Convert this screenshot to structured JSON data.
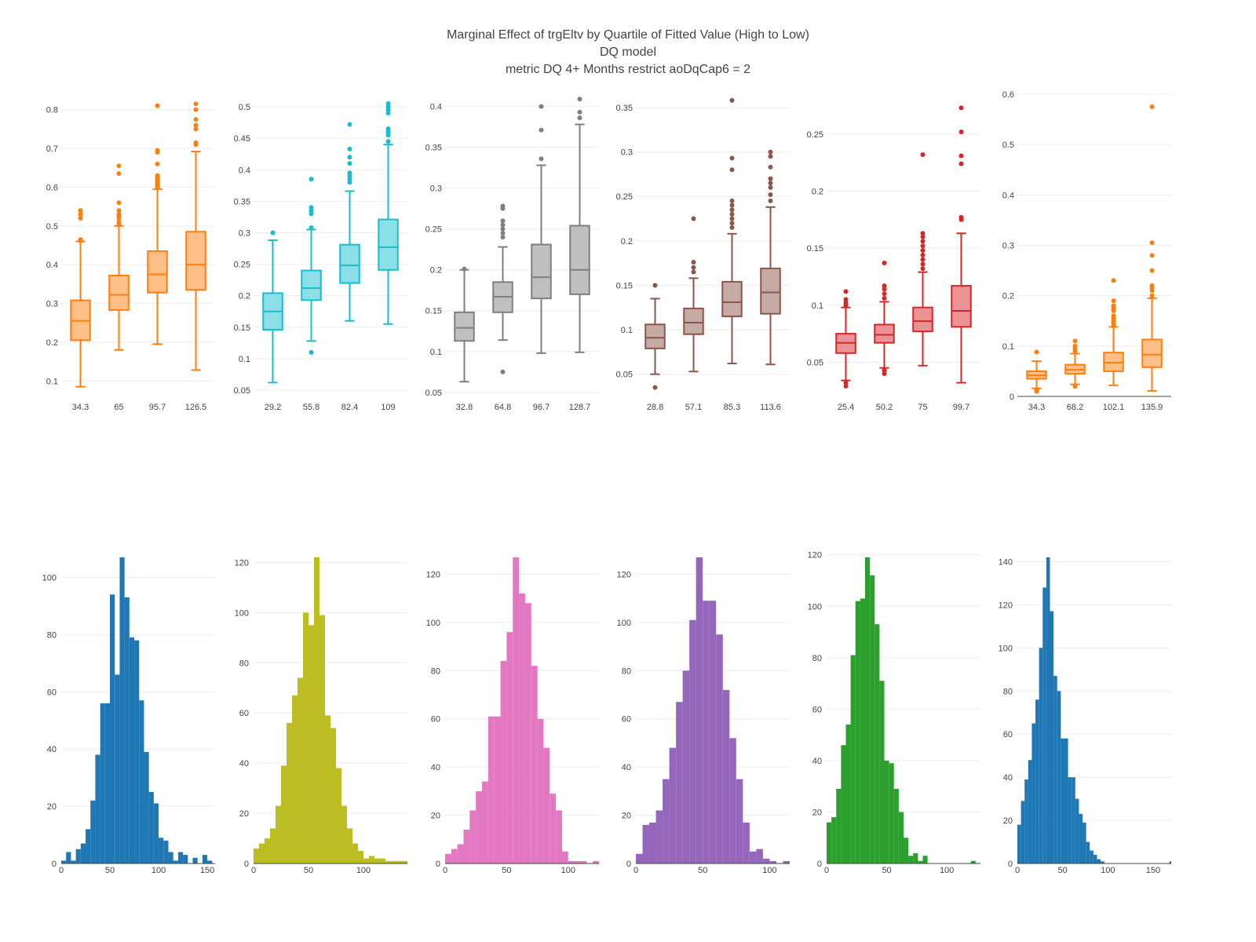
{
  "title": {
    "line1": "Marginal Effect of trgEltv by Quartile of Fitted Value (High to Low)",
    "line2": "DQ model",
    "line3": "metric DQ 4+ Months restrict aoDqCap6 = 2"
  },
  "chart_data": [
    {
      "type": "box",
      "color": "#ff7f0e",
      "categories": [
        "34.3",
        "65",
        "95.7",
        "126.5"
      ],
      "yticks": [
        "0.1",
        "0.2",
        "0.3",
        "0.4",
        "0.5",
        "0.6",
        "0.7",
        "0.8"
      ],
      "ylim": [
        0.06,
        0.84
      ],
      "boxes": [
        {
          "min": 0.085,
          "q1": 0.205,
          "median": 0.255,
          "q3": 0.308,
          "max": 0.46,
          "outliers": [
            0.462,
            0.465,
            0.52,
            0.53,
            0.54
          ]
        },
        {
          "min": 0.18,
          "q1": 0.283,
          "median": 0.322,
          "q3": 0.372,
          "max": 0.5,
          "outliers": [
            0.505,
            0.51,
            0.52,
            0.525,
            0.53,
            0.54,
            0.56,
            0.635,
            0.655
          ]
        },
        {
          "min": 0.195,
          "q1": 0.328,
          "median": 0.375,
          "q3": 0.435,
          "max": 0.595,
          "outliers": [
            0.6,
            0.605,
            0.61,
            0.615,
            0.62,
            0.625,
            0.63,
            0.66,
            0.69,
            0.695,
            0.81
          ]
        },
        {
          "min": 0.128,
          "q1": 0.335,
          "median": 0.4,
          "q3": 0.485,
          "max": 0.692,
          "outliers": [
            0.71,
            0.715,
            0.75,
            0.76,
            0.775,
            0.8,
            0.815
          ]
        }
      ]
    },
    {
      "type": "box",
      "color": "#17becf",
      "categories": [
        "29.2",
        "55.8",
        "82.4",
        "109"
      ],
      "yticks": [
        "0.05",
        "0.1",
        "0.15",
        "0.2",
        "0.25",
        "0.3",
        "0.35",
        "0.4",
        "0.45",
        "0.5"
      ],
      "ylim": [
        0.04,
        0.52
      ],
      "boxes": [
        {
          "min": 0.062,
          "q1": 0.146,
          "median": 0.175,
          "q3": 0.204,
          "max": 0.288,
          "outliers": [
            0.3
          ]
        },
        {
          "min": 0.128,
          "q1": 0.193,
          "median": 0.212,
          "q3": 0.24,
          "max": 0.305,
          "outliers": [
            0.11,
            0.308,
            0.33,
            0.335,
            0.34,
            0.385
          ]
        },
        {
          "min": 0.16,
          "q1": 0.22,
          "median": 0.248,
          "q3": 0.281,
          "max": 0.366,
          "outliers": [
            0.38,
            0.385,
            0.39,
            0.395,
            0.41,
            0.42,
            0.433,
            0.472
          ]
        },
        {
          "min": 0.155,
          "q1": 0.241,
          "median": 0.277,
          "q3": 0.321,
          "max": 0.44,
          "outliers": [
            0.445,
            0.455,
            0.46,
            0.465,
            0.49,
            0.495,
            0.5,
            0.505
          ]
        }
      ]
    },
    {
      "type": "box",
      "color": "#7f7f7f",
      "categories": [
        "32.8",
        "64.8",
        "96.7",
        "128.7"
      ],
      "yticks": [
        "0.05",
        "0.1",
        "0.15",
        "0.2",
        "0.25",
        "0.3",
        "0.35",
        "0.4"
      ],
      "ylim": [
        0.045,
        0.415
      ],
      "boxes": [
        {
          "min": 0.063,
          "q1": 0.113,
          "median": 0.129,
          "q3": 0.148,
          "max": 0.2,
          "outliers": [
            0.201
          ]
        },
        {
          "min": 0.114,
          "q1": 0.148,
          "median": 0.167,
          "q3": 0.185,
          "max": 0.228,
          "outliers": [
            0.075,
            0.24,
            0.245,
            0.25,
            0.255,
            0.26,
            0.275,
            0.278
          ]
        },
        {
          "min": 0.098,
          "q1": 0.165,
          "median": 0.191,
          "q3": 0.231,
          "max": 0.328,
          "outliers": [
            0.336,
            0.371,
            0.4
          ]
        },
        {
          "min": 0.099,
          "q1": 0.17,
          "median": 0.2,
          "q3": 0.254,
          "max": 0.378,
          "outliers": [
            0.386,
            0.393,
            0.409
          ]
        }
      ]
    },
    {
      "type": "box",
      "color": "#8c564b",
      "categories": [
        "28.8",
        "57.1",
        "85.3",
        "113.6"
      ],
      "yticks": [
        "0.05",
        "0.1",
        "0.15",
        "0.2",
        "0.25",
        "0.3",
        "0.35"
      ],
      "ylim": [
        0.025,
        0.365
      ],
      "boxes": [
        {
          "min": 0.05,
          "q1": 0.079,
          "median": 0.091,
          "q3": 0.106,
          "max": 0.135,
          "outliers": [
            0.035,
            0.15
          ]
        },
        {
          "min": 0.053,
          "q1": 0.095,
          "median": 0.108,
          "q3": 0.124,
          "max": 0.158,
          "outliers": [
            0.165,
            0.17,
            0.176,
            0.225
          ]
        },
        {
          "min": 0.062,
          "q1": 0.115,
          "median": 0.131,
          "q3": 0.154,
          "max": 0.208,
          "outliers": [
            0.215,
            0.22,
            0.225,
            0.23,
            0.235,
            0.24,
            0.245,
            0.28,
            0.293,
            0.358
          ]
        },
        {
          "min": 0.061,
          "q1": 0.118,
          "median": 0.142,
          "q3": 0.169,
          "max": 0.238,
          "outliers": [
            0.245,
            0.252,
            0.26,
            0.265,
            0.27,
            0.283,
            0.295,
            0.3
          ]
        }
      ]
    },
    {
      "type": "box",
      "color": "#d62728",
      "categories": [
        "25.4",
        "50.2",
        "75",
        "99.7"
      ],
      "yticks": [
        "0.05",
        "0.1",
        "0.15",
        "0.2",
        "0.25"
      ],
      "ylim": [
        0.02,
        0.285
      ],
      "boxes": [
        {
          "min": 0.034,
          "q1": 0.058,
          "median": 0.067,
          "q3": 0.075,
          "max": 0.098,
          "outliers": [
            0.029,
            0.032,
            0.1,
            0.102,
            0.105,
            0.112
          ]
        },
        {
          "min": 0.045,
          "q1": 0.067,
          "median": 0.074,
          "q3": 0.083,
          "max": 0.103,
          "outliers": [
            0.04,
            0.043,
            0.106,
            0.11,
            0.114,
            0.117,
            0.137
          ]
        },
        {
          "min": 0.047,
          "q1": 0.077,
          "median": 0.086,
          "q3": 0.098,
          "max": 0.129,
          "outliers": [
            0.132,
            0.136,
            0.14,
            0.144,
            0.148,
            0.152,
            0.156,
            0.16,
            0.163,
            0.232
          ]
        },
        {
          "min": 0.032,
          "q1": 0.081,
          "median": 0.095,
          "q3": 0.117,
          "max": 0.163,
          "outliers": [
            0.175,
            0.177,
            0.224,
            0.231,
            0.252,
            0.273
          ]
        }
      ]
    },
    {
      "type": "box",
      "color": "#ff7f0e",
      "categories": [
        "34.3",
        "68.2",
        "102.1",
        "135.9"
      ],
      "yticks": [
        "0",
        "0.1",
        "0.2",
        "0.3",
        "0.4",
        "0.5",
        "0.6"
      ],
      "ylim": [
        0,
        0.6
      ],
      "zero_line": true,
      "boxes": [
        {
          "min": 0.016,
          "q1": 0.035,
          "median": 0.042,
          "q3": 0.05,
          "max": 0.07,
          "outliers": [
            0.01,
            0.013,
            0.088
          ]
        },
        {
          "min": 0.024,
          "q1": 0.045,
          "median": 0.053,
          "q3": 0.063,
          "max": 0.085,
          "outliers": [
            0.02,
            0.09,
            0.095,
            0.1,
            0.11
          ]
        },
        {
          "min": 0.022,
          "q1": 0.05,
          "median": 0.067,
          "q3": 0.087,
          "max": 0.138,
          "outliers": [
            0.14,
            0.145,
            0.15,
            0.155,
            0.16,
            0.17,
            0.175,
            0.18,
            0.19,
            0.23
          ]
        },
        {
          "min": 0.011,
          "q1": 0.058,
          "median": 0.083,
          "q3": 0.113,
          "max": 0.195,
          "outliers": [
            0.2,
            0.21,
            0.215,
            0.22,
            0.25,
            0.28,
            0.305,
            0.575
          ]
        }
      ]
    },
    {
      "type": "bar",
      "color": "#1f77b4",
      "xticks": [
        "0",
        "50",
        "100",
        "150"
      ],
      "xlim": [
        0,
        158
      ],
      "yticks": [
        "0",
        "20",
        "40",
        "60",
        "80",
        "100"
      ],
      "ylim": [
        0,
        107
      ],
      "bin_start": 0,
      "bin_width": 5,
      "values": [
        1,
        4,
        1,
        5,
        7,
        12,
        22,
        38,
        56,
        56,
        94,
        66,
        107,
        93,
        79,
        78,
        57,
        39,
        25,
        21,
        9,
        8,
        4,
        1,
        4,
        3,
        0,
        2,
        0,
        3,
        1
      ]
    },
    {
      "type": "bar",
      "color": "#bcbd22",
      "xticks": [
        "0",
        "50",
        "100"
      ],
      "xlim": [
        0,
        140
      ],
      "yticks": [
        "0",
        "20",
        "40",
        "60",
        "80",
        "100",
        "120"
      ],
      "ylim": [
        0,
        122
      ],
      "bin_start": 0,
      "bin_width": 5,
      "values": [
        6,
        8,
        10,
        14,
        23,
        39,
        56,
        67,
        74,
        100,
        95,
        122,
        99,
        59,
        54,
        38,
        23,
        14,
        8,
        5,
        2,
        3,
        2,
        2,
        1,
        1,
        1,
        1
      ]
    },
    {
      "type": "bar",
      "color": "#e377c2",
      "xticks": [
        "0",
        "50",
        "100"
      ],
      "xlim": [
        0,
        125
      ],
      "yticks": [
        "0",
        "20",
        "40",
        "60",
        "80",
        "100",
        "120"
      ],
      "ylim": [
        0,
        127
      ],
      "bin_start": 0,
      "bin_width": 5,
      "values": [
        4,
        6,
        8,
        14,
        22,
        30,
        34,
        61,
        61,
        84,
        96,
        127,
        112,
        108,
        82,
        60,
        48,
        29,
        22,
        5,
        1,
        1,
        1,
        0,
        1
      ]
    },
    {
      "type": "bar",
      "color": "#9467bd",
      "xticks": [
        "0",
        "50",
        "100"
      ],
      "xlim": [
        0,
        115
      ],
      "yticks": [
        "0",
        "20",
        "40",
        "60",
        "80",
        "100",
        "120"
      ],
      "ylim": [
        0,
        127
      ],
      "bin_start": 0,
      "bin_width": 5,
      "values": [
        4,
        16,
        17,
        22,
        35,
        48,
        67,
        80,
        101,
        127,
        109,
        109,
        95,
        72,
        52,
        35,
        17,
        5,
        6,
        2,
        1,
        0,
        1
      ]
    },
    {
      "type": "bar",
      "color": "#2ca02c",
      "xticks": [
        "0",
        "50",
        "100"
      ],
      "xlim": [
        0,
        128
      ],
      "yticks": [
        "0",
        "20",
        "40",
        "60",
        "80",
        "100",
        "120"
      ],
      "ylim": [
        0,
        119
      ],
      "bin_start": 0,
      "bin_width": 4,
      "values": [
        16,
        18,
        29,
        46,
        54,
        81,
        102,
        103,
        119,
        112,
        93,
        71,
        40,
        39,
        29,
        20,
        10,
        3,
        4,
        1,
        3,
        0,
        0,
        0,
        0,
        0,
        0,
        0,
        0,
        0,
        1
      ]
    },
    {
      "type": "bar",
      "color": "#1f77b4",
      "xticks": [
        "0",
        "50",
        "100",
        "150"
      ],
      "xlim": [
        0,
        170
      ],
      "yticks": [
        "0",
        "20",
        "40",
        "60",
        "80",
        "100",
        "120",
        "140"
      ],
      "ylim": [
        0,
        142
      ],
      "bin_start": 0,
      "bin_width": 4,
      "values": [
        18,
        29,
        39,
        48,
        65,
        76,
        100,
        128,
        142,
        117,
        87,
        80,
        58,
        58,
        40,
        40,
        30,
        23,
        19,
        10,
        6,
        4,
        2,
        1,
        0,
        0,
        0,
        0,
        0,
        0,
        0,
        0,
        0,
        0,
        0,
        0,
        0,
        0,
        0,
        0,
        0,
        0,
        1
      ]
    }
  ]
}
